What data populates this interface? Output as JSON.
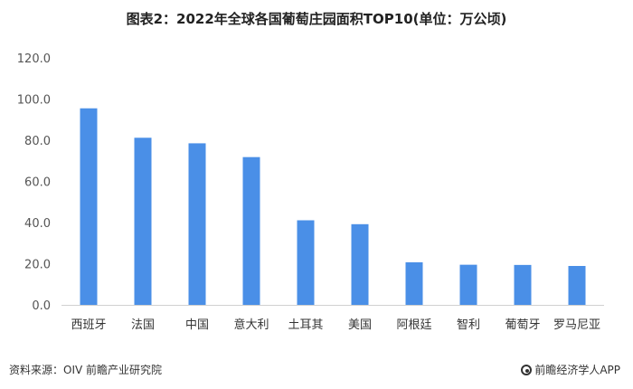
{
  "chart_data": {
    "type": "bar",
    "title": "图表2：2022年全球各国葡萄庄园面积TOP10(单位：万公顷)",
    "categories": [
      "西班牙",
      "法国",
      "中国",
      "意大利",
      "土耳其",
      "美国",
      "阿根廷",
      "智利",
      "葡萄牙",
      "罗马尼亚"
    ],
    "values": [
      95.5,
      81.2,
      78.5,
      71.8,
      41.1,
      39.2,
      20.7,
      19.5,
      19.4,
      18.9
    ],
    "yticks": [
      "0.0",
      "20.0",
      "40.0",
      "60.0",
      "80.0",
      "100.0",
      "120.0"
    ],
    "ylim": [
      0,
      120
    ],
    "grid": false,
    "bar_color": "#4a8fe7"
  },
  "footer": {
    "source": "资料来源：OIV 前瞻产业研究院",
    "brand": "前瞻经济学人APP",
    "brand_icon": "qianzhan-logo-icon"
  }
}
